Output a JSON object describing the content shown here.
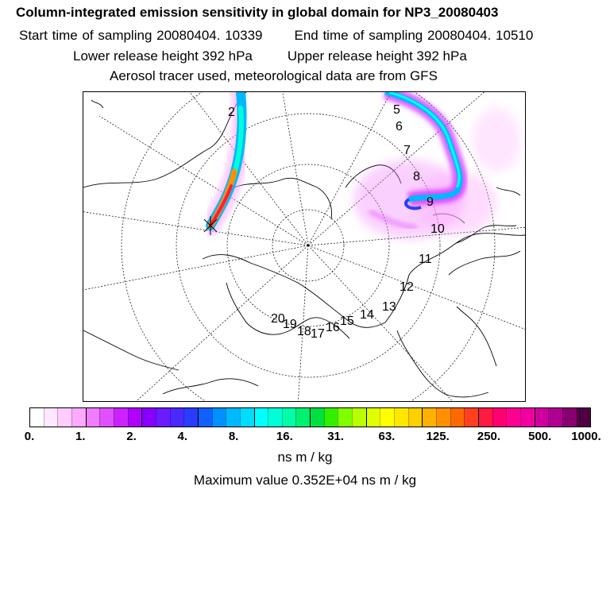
{
  "header": {
    "title": "Column-integrated emission sensitivity in global domain for NP3_20080403",
    "start_label": "Start time of sampling 20080404. 10339",
    "end_label": "End time of sampling 20080404. 10510",
    "lower_label": "Lower release height  392 hPa",
    "upper_label": "Upper release height  392 hPa",
    "tracer_note": "Aerosol tracer used, meteorological data are from GFS"
  },
  "map": {
    "projection": "polar-stereographic",
    "trajectory_labels": [
      "2",
      "5",
      "6",
      "7",
      "8",
      "9",
      "10",
      "11",
      "12",
      "13",
      "14",
      "15",
      "16",
      "17",
      "18",
      "19",
      "20"
    ]
  },
  "colorbar": {
    "tick_labels": [
      "0.",
      "1.",
      "2.",
      "4.",
      "8.",
      "16.",
      "31.",
      "63.",
      "125.",
      "250.",
      "500.",
      "1000."
    ],
    "colors": [
      "#ffffff",
      "#ffe8ff",
      "#ffccff",
      "#ffa8ff",
      "#f07cff",
      "#e050ff",
      "#cc22ff",
      "#b000ff",
      "#8800ff",
      "#6a1bff",
      "#4a28ff",
      "#2a3cff",
      "#1060ff",
      "#0090ff",
      "#00b8ff",
      "#00dcff",
      "#00ffff",
      "#00ffd8",
      "#00ffa8",
      "#00f070",
      "#00e040",
      "#30f000",
      "#80ff00",
      "#b8ff00",
      "#e0ff00",
      "#ffff00",
      "#ffe800",
      "#ffd000",
      "#ffb000",
      "#ff9000",
      "#ff6a00",
      "#ff4020",
      "#ff1a40",
      "#ff0070",
      "#ff0090",
      "#f000a0",
      "#d000a0",
      "#b00090",
      "#880070",
      "#500040"
    ],
    "unit": "ns m / kg"
  },
  "footer": {
    "max_value": "Maximum value  0.352E+04 ns m / kg"
  }
}
